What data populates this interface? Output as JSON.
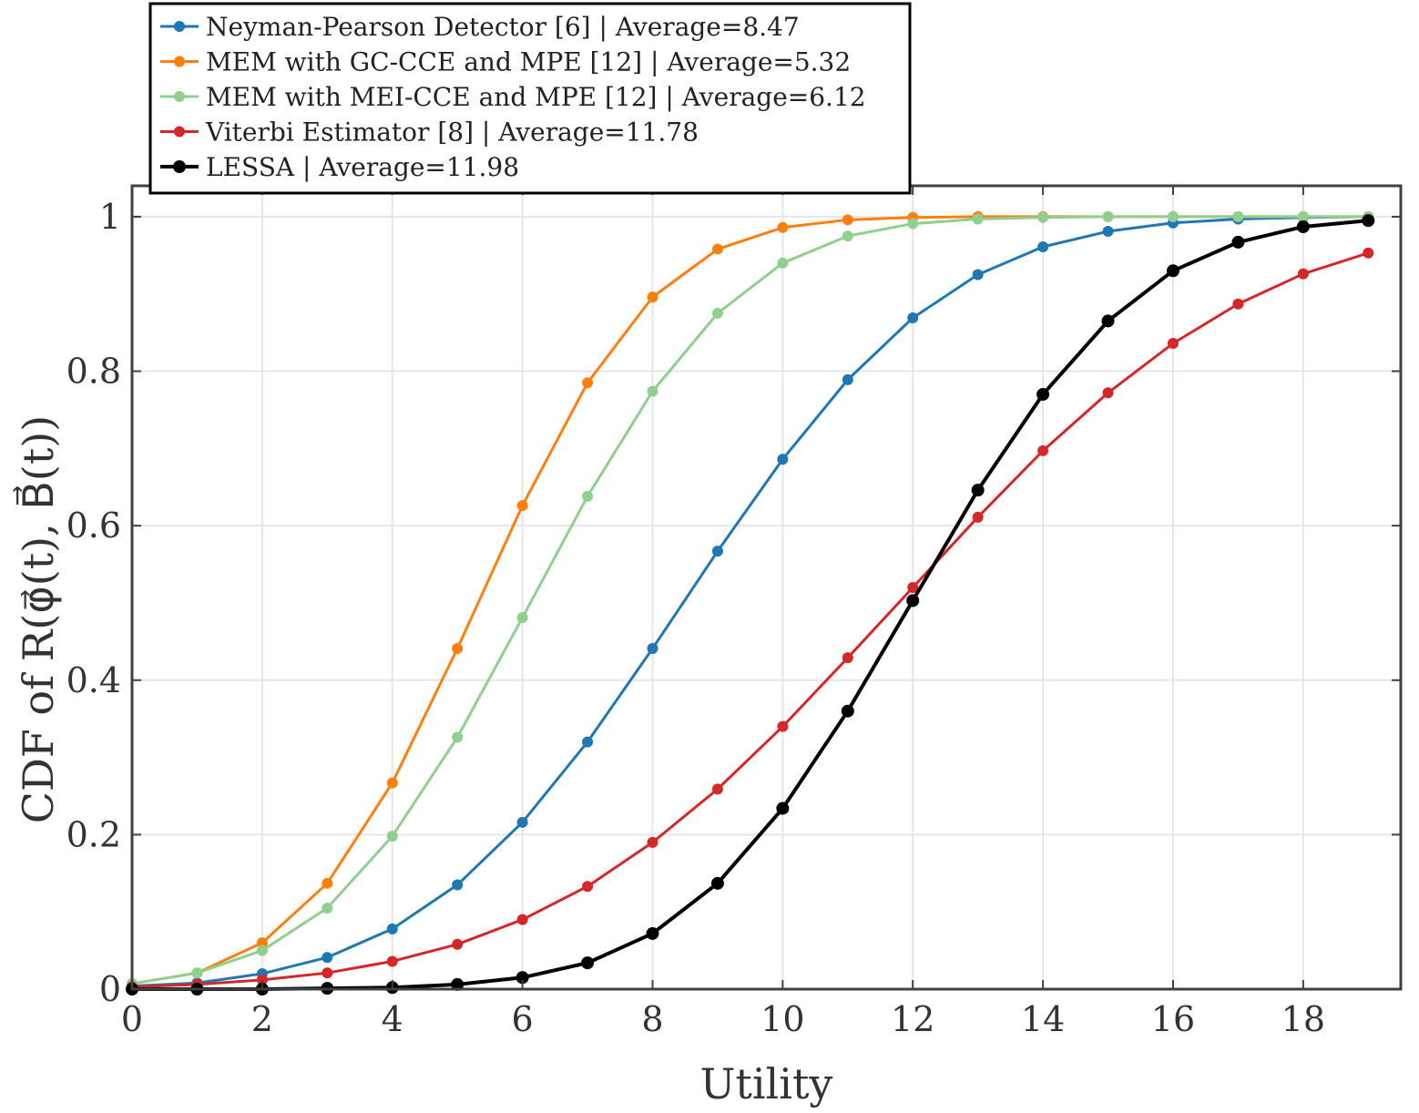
{
  "chart_data": {
    "type": "line",
    "xlabel": "Utility",
    "ylabel": "CDF of R(φ⃗(t), B⃗(t))",
    "xlim": [
      0,
      19.5
    ],
    "ylim": [
      0,
      1.04
    ],
    "grid": true,
    "legend_position": "top-left, above plot",
    "x": [
      0,
      1,
      2,
      3,
      4,
      5,
      6,
      7,
      8,
      9,
      10,
      11,
      12,
      13,
      14,
      15,
      16,
      17,
      18,
      19
    ],
    "x_ticks": [
      "0",
      "2",
      "4",
      "6",
      "8",
      "10",
      "12",
      "14",
      "16",
      "18"
    ],
    "x_tick_values": [
      0,
      2,
      4,
      6,
      8,
      10,
      12,
      14,
      16,
      18
    ],
    "y_ticks": [
      "0",
      "0.2",
      "0.4",
      "0.6",
      "0.8",
      "1"
    ],
    "y_tick_values": [
      0,
      0.2,
      0.4,
      0.6,
      0.8,
      1
    ],
    "series": [
      {
        "name": "Neyman-Pearson Detector [6] | Average=8.47",
        "color": "#1f77b4",
        "values": [
          0.004,
          0.008,
          0.02,
          0.041,
          0.078,
          0.135,
          0.216,
          0.32,
          0.441,
          0.567,
          0.686,
          0.789,
          0.869,
          0.925,
          0.961,
          0.981,
          0.992,
          0.997,
          0.999,
          1.0
        ]
      },
      {
        "name": "MEM with GC-CCE and MPE [12] | Average=5.32",
        "color": "#ff7f0e",
        "values": [
          0.007,
          0.021,
          0.06,
          0.137,
          0.267,
          0.441,
          0.626,
          0.785,
          0.896,
          0.958,
          0.986,
          0.996,
          0.999,
          1.0,
          1.0,
          1.0,
          1.0,
          1.0,
          1.0,
          1.0
        ]
      },
      {
        "name": "MEM with MEI-CCE and MPE [12] | Average=6.12",
        "color": "#90d08f",
        "values": [
          0.007,
          0.021,
          0.05,
          0.105,
          0.198,
          0.326,
          0.481,
          0.638,
          0.774,
          0.875,
          0.94,
          0.975,
          0.991,
          0.997,
          0.999,
          1.0,
          1.0,
          1.0,
          1.0,
          1.0
        ]
      },
      {
        "name": "Viterbi Estimator [8] | Average=11.78",
        "color": "#d62728",
        "values": [
          0.003,
          0.006,
          0.012,
          0.021,
          0.036,
          0.058,
          0.09,
          0.133,
          0.19,
          0.259,
          0.34,
          0.429,
          0.52,
          0.611,
          0.697,
          0.772,
          0.836,
          0.887,
          0.926,
          0.953
        ]
      },
      {
        "name": "LESSA | Average=11.98",
        "color": "#000000",
        "values": [
          0.0,
          0.0,
          0.0,
          0.001,
          0.002,
          0.006,
          0.015,
          0.034,
          0.072,
          0.137,
          0.234,
          0.36,
          0.503,
          0.646,
          0.77,
          0.865,
          0.93,
          0.967,
          0.987,
          0.995
        ]
      }
    ]
  }
}
